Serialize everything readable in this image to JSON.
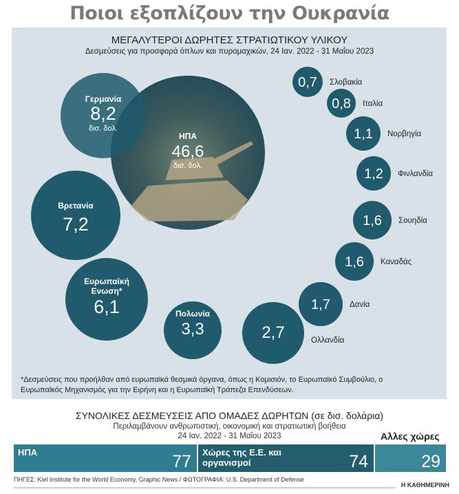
{
  "title": "Ποιοι εξοπλίζουν την Ουκρανία",
  "chart_data": {
    "type": "bubble",
    "title": "ΜΕΓΑΛΥΤΕΡΟΙ ΔΩΡΗΤΕΣ ΣΤΡΑΤΙΩΤΙΚΟΥ ΥΛΙΚΟΥ",
    "subtitle": "Δεσμεύσεις για προσφορά όπλων και πυρομαχικών, 24 Ιαν. 2022 - 31 Μαΐου 2023",
    "unit": "δισ. δολ.",
    "items": [
      {
        "name": "ΗΠΑ",
        "value": 46.6,
        "label": "46,6"
      },
      {
        "name": "Γερμανία",
        "value": 8.2,
        "label": "8,2"
      },
      {
        "name": "Βρετανία",
        "value": 7.2,
        "label": "7,2"
      },
      {
        "name": "Ευρωπαϊκή Ενωση*",
        "value": 6.1,
        "label": "6,1"
      },
      {
        "name": "Πολωνία",
        "value": 3.3,
        "label": "3,3"
      },
      {
        "name": "Ολλανδία",
        "value": 2.7,
        "label": "2,7"
      },
      {
        "name": "Δανία",
        "value": 1.7,
        "label": "1,7"
      },
      {
        "name": "Καναδάς",
        "value": 1.6,
        "label": "1,6"
      },
      {
        "name": "Σουηδία",
        "value": 1.6,
        "label": "1,6"
      },
      {
        "name": "Φινλανδία",
        "value": 1.2,
        "label": "1,2"
      },
      {
        "name": "Νορβηγία",
        "value": 1.1,
        "label": "1,1"
      },
      {
        "name": "Ιταλία",
        "value": 0.8,
        "label": "0,8"
      },
      {
        "name": "Σλοβακία",
        "value": 0.7,
        "label": "0,7"
      }
    ],
    "note": "*Δεσμεύσεις που προήλθαν από ευρωπαϊκά θεσμικά όργανα, όπως η Κομισιόν, το Ευρωπαϊκό Συμβούλιο, ο Ευρωπαϊκός Μηχανισμός για την Ειρήνη και η Ευρωπαϊκή Τράπεζα Επενδύσεων."
  },
  "totals": {
    "title": "ΣΥΝΟΛΙΚΕΣ ΔΕΣΜΕΥΣΕΙΣ ΑΠΟ ΟΜΑΔΕΣ ΔΩΡΗΤΩΝ (σε δισ. δολάρια)",
    "subtitle": "Περιλαμβάνουν ανθρωπιστική, οικονομική και στρατιωτική βοήθεια",
    "dates": "24 Ιαν. 2022 - 31 Μαΐου 2023",
    "other_label": "Αλλες χώρες",
    "bars": [
      {
        "label": "ΗΠΑ",
        "value": 77,
        "color": "#2f7d90"
      },
      {
        "label": "Χώρες της Ε.Ε. και οργανισμοί",
        "value": 74,
        "color": "#235e6e"
      },
      {
        "label": "",
        "value": 29,
        "color": "#3a8799"
      }
    ]
  },
  "source": "ΠΗΓΕΣ: Kiel Institute for the World Economy, Graphic News / ΦΩΤΟΓΡΑΦΙΑ: U.S. Department of Defense",
  "logo": "Η ΚΑΘΗΜΕΡΙΝΗ",
  "colors": {
    "panel": "#d7e1e7",
    "bubble": "#1f5a6d"
  }
}
